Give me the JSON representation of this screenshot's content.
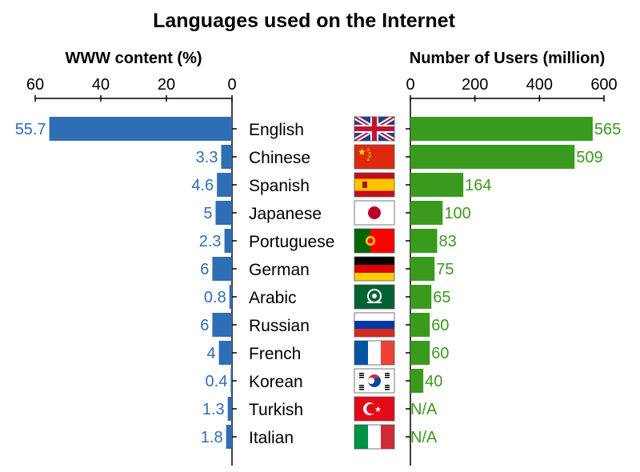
{
  "chart_data": {
    "type": "bar",
    "title": "Languages used on the Internet",
    "categories": [
      "English",
      "Chinese",
      "Spanish",
      "Japanese",
      "Portuguese",
      "German",
      "Arabic",
      "Russian",
      "French",
      "Korean",
      "Turkish",
      "Italian"
    ],
    "flags": [
      "uk-flag-icon",
      "china-flag-icon",
      "spain-flag-icon",
      "japan-flag-icon",
      "portugal-flag-icon",
      "germany-flag-icon",
      "arab-league-flag-icon",
      "russia-flag-icon",
      "france-flag-icon",
      "korea-flag-icon",
      "turkey-flag-icon",
      "italy-flag-icon"
    ],
    "series": [
      {
        "name": "WWW content (%)",
        "side": "left",
        "color": "#2f6eb5",
        "xlim": [
          60,
          0
        ],
        "ticks": [
          "60",
          "40",
          "20",
          "0"
        ],
        "values": [
          55.7,
          3.3,
          4.6,
          5,
          2.3,
          6,
          0.8,
          6,
          4,
          0.4,
          1.3,
          1.8
        ],
        "labels": [
          "55.7",
          "3.3",
          "4.6",
          "5",
          "2.3",
          "6",
          "0.8",
          "6",
          "4",
          "0.4",
          "1.3",
          "1.8"
        ]
      },
      {
        "name": "Number of Users (million)",
        "side": "right",
        "color": "#3a9a1e",
        "xlim": [
          0,
          600
        ],
        "ticks": [
          "0",
          "200",
          "400",
          "600"
        ],
        "values": [
          565,
          509,
          164,
          100,
          83,
          75,
          65,
          60,
          60,
          40,
          null,
          null
        ],
        "labels": [
          "565",
          "509",
          "164",
          "100",
          "83",
          "75",
          "65",
          "60",
          "60",
          "40",
          "N/A",
          "N/A"
        ]
      }
    ]
  }
}
